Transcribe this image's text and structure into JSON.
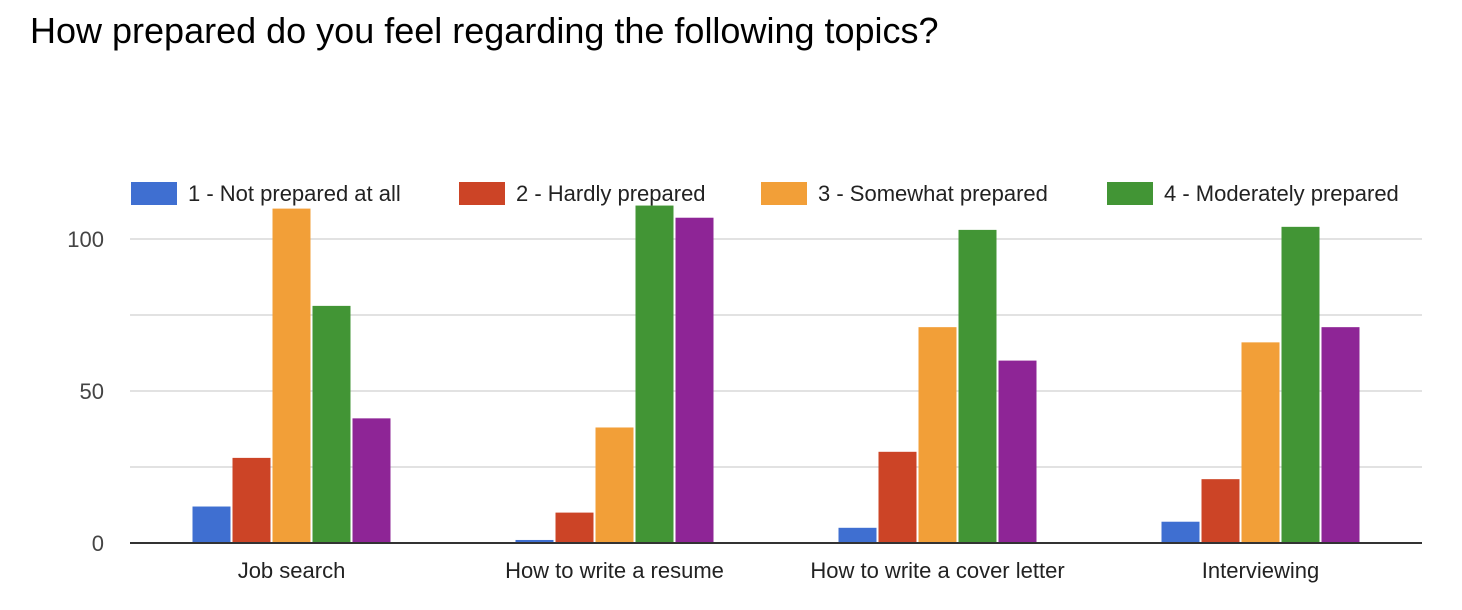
{
  "chart_data": {
    "type": "bar",
    "title": "How prepared do you feel regarding the following topics?",
    "categories": [
      "Job search",
      "How to write a resume",
      "How to write a cover letter",
      "Interviewing"
    ],
    "series": [
      {
        "name": "1 - Not prepared at all",
        "color": "#3f6fd1",
        "values": [
          12,
          1,
          5,
          7
        ]
      },
      {
        "name": "2 - Hardly prepared",
        "color": "#cc4426",
        "values": [
          28,
          10,
          30,
          21
        ]
      },
      {
        "name": "3 - Somewhat prepared",
        "color": "#f29f38",
        "values": [
          110,
          38,
          71,
          66
        ]
      },
      {
        "name": "4 - Moderately prepared",
        "color": "#429535",
        "values": [
          78,
          111,
          103,
          104
        ]
      },
      {
        "name": "",
        "color": "#8e2596",
        "values": [
          41,
          107,
          60,
          71
        ]
      }
    ],
    "y_ticks": [
      "0",
      "50",
      "100"
    ],
    "ylim": [
      0,
      110
    ],
    "xlabel": "",
    "ylabel": "",
    "grid": true,
    "legend_position": "top"
  }
}
